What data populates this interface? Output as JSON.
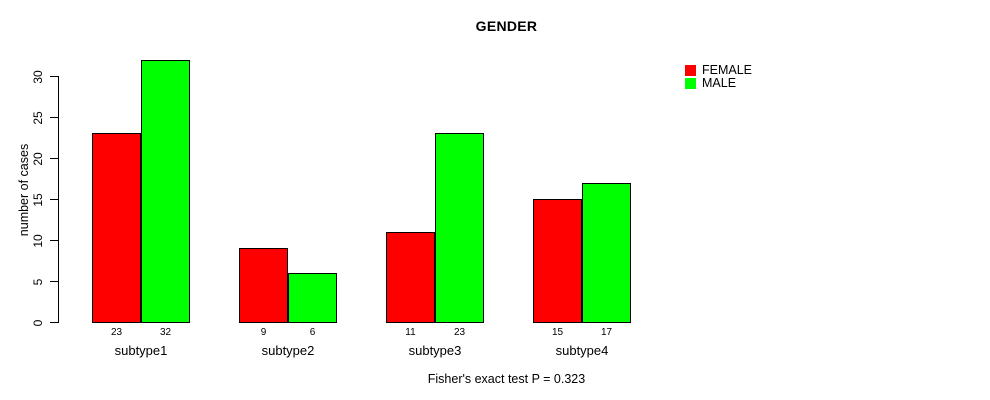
{
  "title": "GENDER",
  "caption": "Fisher's exact test P = 0.323",
  "colors": {
    "female": "#ff0000",
    "male": "#00ff00",
    "axis": "#000000",
    "background": "#ffffff"
  },
  "chart_data": {
    "type": "bar",
    "title": "GENDER",
    "xlabel": "",
    "ylabel": "number of cases",
    "categories": [
      "subtype1",
      "subtype2",
      "subtype3",
      "subtype4"
    ],
    "series": [
      {
        "name": "FEMALE",
        "color": "#ff0000",
        "values": [
          23,
          9,
          11,
          15
        ]
      },
      {
        "name": "MALE",
        "color": "#00ff00",
        "values": [
          32,
          6,
          23,
          17
        ]
      }
    ],
    "bar_value_labels": [
      [
        "23",
        "32"
      ],
      [
        "9",
        "6"
      ],
      [
        "11",
        "23"
      ],
      [
        "15",
        "17"
      ]
    ],
    "ylim": [
      0,
      33
    ],
    "yticks": [
      0,
      5,
      10,
      15,
      20,
      25,
      30
    ],
    "grid": false,
    "legend_position": "top-right",
    "legend_entries": [
      "FEMALE",
      "MALE"
    ],
    "annotation": "Fisher's exact test P = 0.323"
  }
}
